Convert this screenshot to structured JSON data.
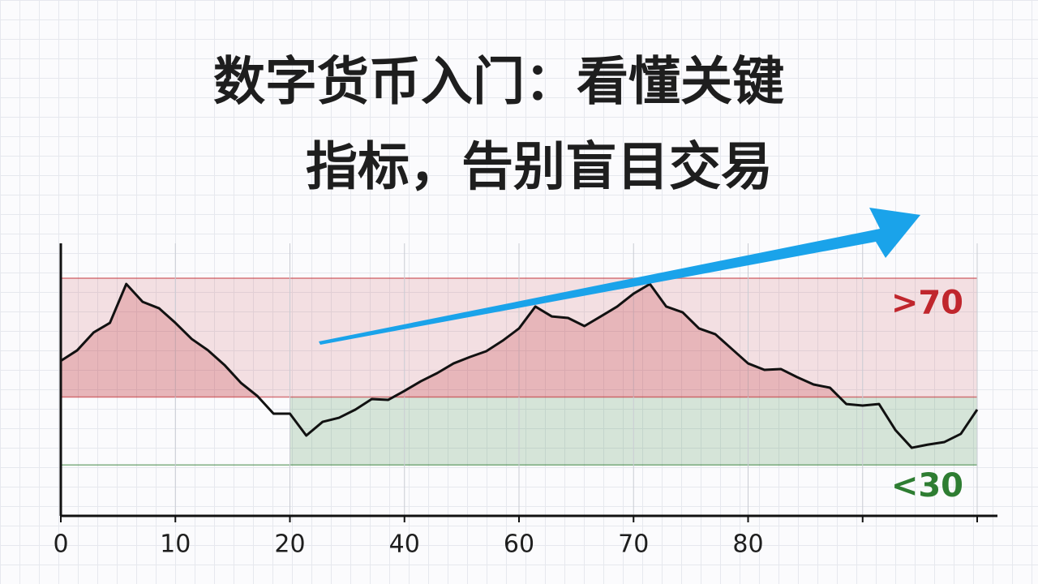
{
  "chart_data": {
    "type": "line",
    "title_lines": [
      "数字货币入门：看懂关键",
      "指标，告别盲目交易"
    ],
    "x_tick_labels": [
      "0",
      "10",
      "20",
      "40",
      "60",
      "70",
      "80",
      null,
      null
    ],
    "values": [
      91.3,
      97.5,
      108.0,
      113.7,
      136.6,
      126.1,
      122.3,
      113.7,
      104.2,
      97.5,
      88.9,
      78.4,
      70.7,
      60.2,
      60.2,
      47.3,
      55.4,
      57.8,
      62.6,
      68.8,
      68.3,
      73.6,
      79.3,
      84.1,
      89.8,
      93.6,
      97.0,
      103.2,
      110.4,
      123.3,
      117.5,
      116.6,
      111.8,
      117.5,
      123.3,
      130.9,
      136.6,
      123.3,
      119.9,
      110.4,
      107.0,
      98.4,
      89.8,
      86.0,
      86.5,
      81.7,
      77.4,
      75.5,
      65.9,
      65.0,
      65.9,
      50.6,
      40.1,
      42.0,
      43.5,
      48.3,
      62.6
    ],
    "color": "#111111",
    "ylim": [
      0,
      140
    ],
    "thresholds": [
      {
        "value": 70,
        "label": ">70",
        "color": "#c0262d"
      },
      {
        "value": 30,
        "label": "<30",
        "color": "#2e7d32"
      }
    ]
  }
}
